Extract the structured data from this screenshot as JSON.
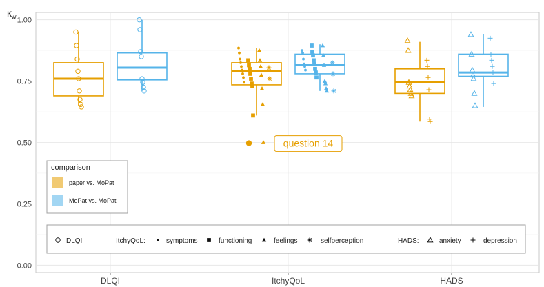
{
  "chart_data": {
    "type": "box",
    "ylabel_base": "κ",
    "ylabel_sub": "w",
    "ylim": [
      -0.03,
      1.03
    ],
    "yticks": [
      0,
      0.25,
      0.5,
      0.75,
      1
    ],
    "ytick_labels": [
      "0.00",
      "0.25",
      "0.50",
      "0.75",
      "1.00"
    ],
    "categories": [
      "DLQI",
      "ItchyQoL",
      "HADS"
    ],
    "grid": true,
    "series": [
      {
        "name": "paper vs. MoPat",
        "color": "#E69F00",
        "boxes": [
          {
            "category": "DLQI",
            "q1": 0.69,
            "median": 0.76,
            "q3": 0.825,
            "whisker_low": 0.65,
            "whisker_high": 0.95
          },
          {
            "category": "ItchyQoL",
            "q1": 0.735,
            "median": 0.79,
            "q3": 0.825,
            "whisker_low": 0.61,
            "whisker_high": 0.885
          },
          {
            "category": "HADS",
            "q1": 0.7,
            "median": 0.745,
            "q3": 0.8,
            "whisker_low": 0.585,
            "whisker_high": 0.91
          }
        ],
        "points": [
          {
            "category": "DLQI",
            "shape": "circle",
            "values": [
              0.95,
              0.895,
              0.84,
              0.79,
              0.76,
              0.71,
              0.675,
              0.655,
              0.645
            ]
          },
          {
            "category": "ItchyQoL",
            "shape": "dot",
            "values": [
              0.885,
              0.865,
              0.84,
              0.825,
              0.81,
              0.795,
              0.78,
              0.765,
              0.745
            ]
          },
          {
            "category": "ItchyQoL",
            "shape": "square",
            "values": [
              0.835,
              0.815,
              0.8,
              0.78,
              0.76,
              0.74,
              0.73,
              0.61
            ]
          },
          {
            "category": "ItchyQoL",
            "shape": "triangle",
            "values": [
              0.875,
              0.835,
              0.81,
              0.775,
              0.72,
              0.655,
              0.5
            ]
          },
          {
            "category": "ItchyQoL",
            "shape": "asterisk",
            "values": [
              0.805,
              0.76
            ]
          },
          {
            "category": "HADS",
            "shape": "triangle-open",
            "values": [
              0.915,
              0.875,
              0.745,
              0.73,
              0.715,
              0.7,
              0.69
            ]
          },
          {
            "category": "HADS",
            "shape": "plus",
            "values": [
              0.835,
              0.81,
              0.765,
              0.715,
              0.595,
              0.585
            ]
          }
        ]
      },
      {
        "name": "MoPat vs. MoPat",
        "color": "#56B4E9",
        "boxes": [
          {
            "category": "DLQI",
            "q1": 0.755,
            "median": 0.805,
            "q3": 0.865,
            "whisker_low": 0.71,
            "whisker_high": 1.0
          },
          {
            "category": "ItchyQoL",
            "q1": 0.78,
            "median": 0.815,
            "q3": 0.86,
            "whisker_low": 0.71,
            "whisker_high": 0.9
          },
          {
            "category": "HADS",
            "q1": 0.77,
            "median": 0.785,
            "q3": 0.86,
            "whisker_low": 0.645,
            "whisker_high": 0.94
          }
        ],
        "points": [
          {
            "category": "DLQI",
            "shape": "circle",
            "values": [
              1.0,
              0.96,
              0.87,
              0.85,
              0.76,
              0.745,
              0.725,
              0.71
            ]
          },
          {
            "category": "ItchyQoL",
            "shape": "dot",
            "values": [
              0.875,
              0.865,
              0.84,
              0.82,
              0.81,
              0.795
            ]
          },
          {
            "category": "ItchyQoL",
            "shape": "square",
            "values": [
              0.895,
              0.87,
              0.855,
              0.835,
              0.82,
              0.8,
              0.785,
              0.765
            ]
          },
          {
            "category": "ItchyQoL",
            "shape": "triangle",
            "values": [
              0.895,
              0.855,
              0.815,
              0.75,
              0.74,
              0.72,
              0.71
            ]
          },
          {
            "category": "ItchyQoL",
            "shape": "asterisk",
            "values": [
              0.825,
              0.78,
              0.71
            ]
          },
          {
            "category": "HADS",
            "shape": "triangle-open",
            "values": [
              0.94,
              0.86,
              0.795,
              0.775,
              0.76,
              0.7,
              0.65
            ]
          },
          {
            "category": "HADS",
            "shape": "plus",
            "values": [
              0.925,
              0.86,
              0.835,
              0.81,
              0.785,
              0.74
            ]
          }
        ]
      }
    ],
    "annotation": {
      "text": "question 14",
      "category": "ItchyQoL",
      "value": 0.497,
      "color": "#E69F00"
    },
    "legend_comparison": {
      "title": "comparison",
      "placement": "left",
      "items": [
        {
          "label": "paper vs. MoPat",
          "color": "#E69F00"
        },
        {
          "label": "MoPat vs. MoPat",
          "color": "#56B4E9"
        }
      ]
    },
    "legend_shapes": {
      "placement": "bottom",
      "groups": [
        {
          "title": "",
          "items": [
            {
              "shape": "circle",
              "label": "DLQI"
            }
          ]
        },
        {
          "title": "ItchyQoL:",
          "items": [
            {
              "shape": "dot",
              "label": "symptoms"
            },
            {
              "shape": "square",
              "label": "functioning"
            },
            {
              "shape": "triangle",
              "label": "feelings"
            },
            {
              "shape": "asterisk",
              "label": "selfperception"
            }
          ]
        },
        {
          "title": "HADS:",
          "items": [
            {
              "shape": "triangle-open",
              "label": "anxiety"
            },
            {
              "shape": "plus",
              "label": "depression"
            }
          ]
        }
      ]
    }
  }
}
